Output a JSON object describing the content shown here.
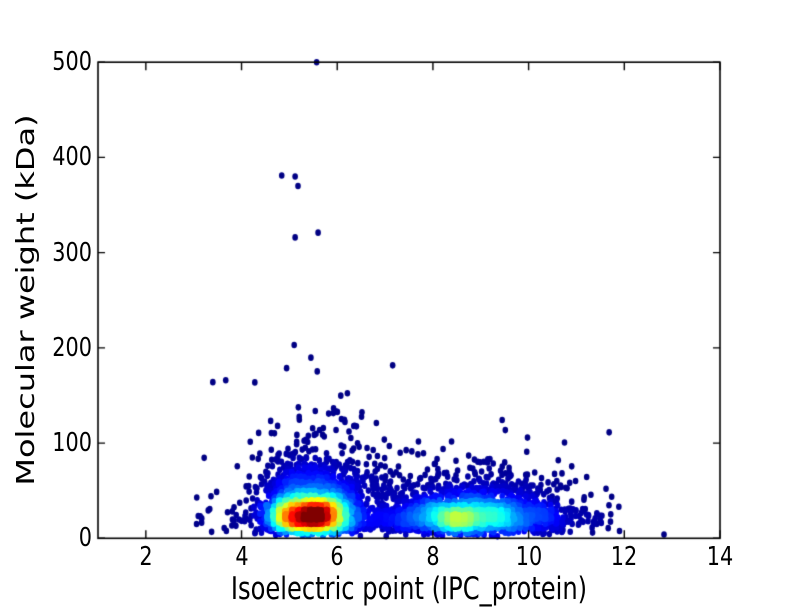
{
  "chart_data": {
    "type": "scatter",
    "variant": "density-colored-scatter",
    "colormap": "jet",
    "title": "",
    "xlabel": "Isoelectric point (IPC_protein)",
    "ylabel": "Molecular weight (kDa)",
    "xlim": [
      1,
      14
    ],
    "ylim": [
      0,
      500
    ],
    "xticks": [
      2,
      4,
      6,
      8,
      10,
      12,
      14
    ],
    "yticks": [
      0,
      100,
      200,
      300,
      400,
      500
    ],
    "grid": false,
    "legend": "none",
    "marker_rx_px": 2.8,
    "marker_ry_px": 3.3,
    "axis_color": "#000000",
    "background_color": "#ffffff",
    "density_scale": 1.08,
    "seed": 1234567,
    "clusters": [
      {
        "name": "acidic-main-left",
        "kind": "gauss",
        "n": 1250,
        "pi_mean": 5.22,
        "pi_sd": 0.42,
        "mw_log_mean": 3.33,
        "mw_log_sd": 0.46,
        "mw_small_frac": 0.1,
        "mw_small_log_mean": 2.5,
        "mw_small_log_sd": 0.6
      },
      {
        "name": "acidic-main-right",
        "kind": "gauss",
        "n": 1250,
        "pi_mean": 5.72,
        "pi_sd": 0.45,
        "mw_log_mean": 3.33,
        "mw_log_sd": 0.46,
        "mw_small_frac": 0.1,
        "mw_small_log_mean": 2.5,
        "mw_small_log_sd": 0.6
      },
      {
        "name": "basic-main-left",
        "kind": "gauss",
        "n": 1000,
        "pi_mean": 8.3,
        "pi_sd": 0.85,
        "mw_log_mean": 3.24,
        "mw_log_sd": 0.44,
        "mw_small_frac": 0.1,
        "mw_small_log_mean": 2.45,
        "mw_small_log_sd": 0.6
      },
      {
        "name": "basic-main-right",
        "kind": "gauss",
        "n": 1000,
        "pi_mean": 9.25,
        "pi_sd": 0.9,
        "mw_log_mean": 3.24,
        "mw_log_sd": 0.44,
        "mw_small_frac": 0.1,
        "mw_small_log_mean": 2.45,
        "mw_small_log_sd": 0.6
      },
      {
        "name": "acidic-high-mw-plume",
        "kind": "plume",
        "n": 240,
        "pi_mean": 5.7,
        "pi_sd": 0.75,
        "mw_min": 52,
        "mw_exp_scale": 32,
        "mw_max": 205
      },
      {
        "name": "basic-high-mw-plume",
        "kind": "plume",
        "n": 70,
        "pi_mean": 8.6,
        "pi_sd": 1.1,
        "mw_min": 52,
        "mw_exp_scale": 20,
        "mw_max": 140
      },
      {
        "name": "sparse-background",
        "kind": "background",
        "n": 150,
        "pi_min": 3.05,
        "pi_max": 11.8,
        "mw_log_mean": 3.1,
        "mw_log_sd": 0.75
      }
    ],
    "outliers": [
      [
        5.57,
        500
      ],
      [
        4.84,
        381
      ],
      [
        5.12,
        380
      ],
      [
        5.18,
        370
      ],
      [
        5.12,
        316
      ],
      [
        5.6,
        321
      ],
      [
        5.1,
        203
      ],
      [
        3.4,
        164
      ],
      [
        3.67,
        166
      ],
      [
        3.06,
        15
      ],
      [
        10.62,
        82
      ],
      [
        12.83,
        4
      ]
    ]
  }
}
